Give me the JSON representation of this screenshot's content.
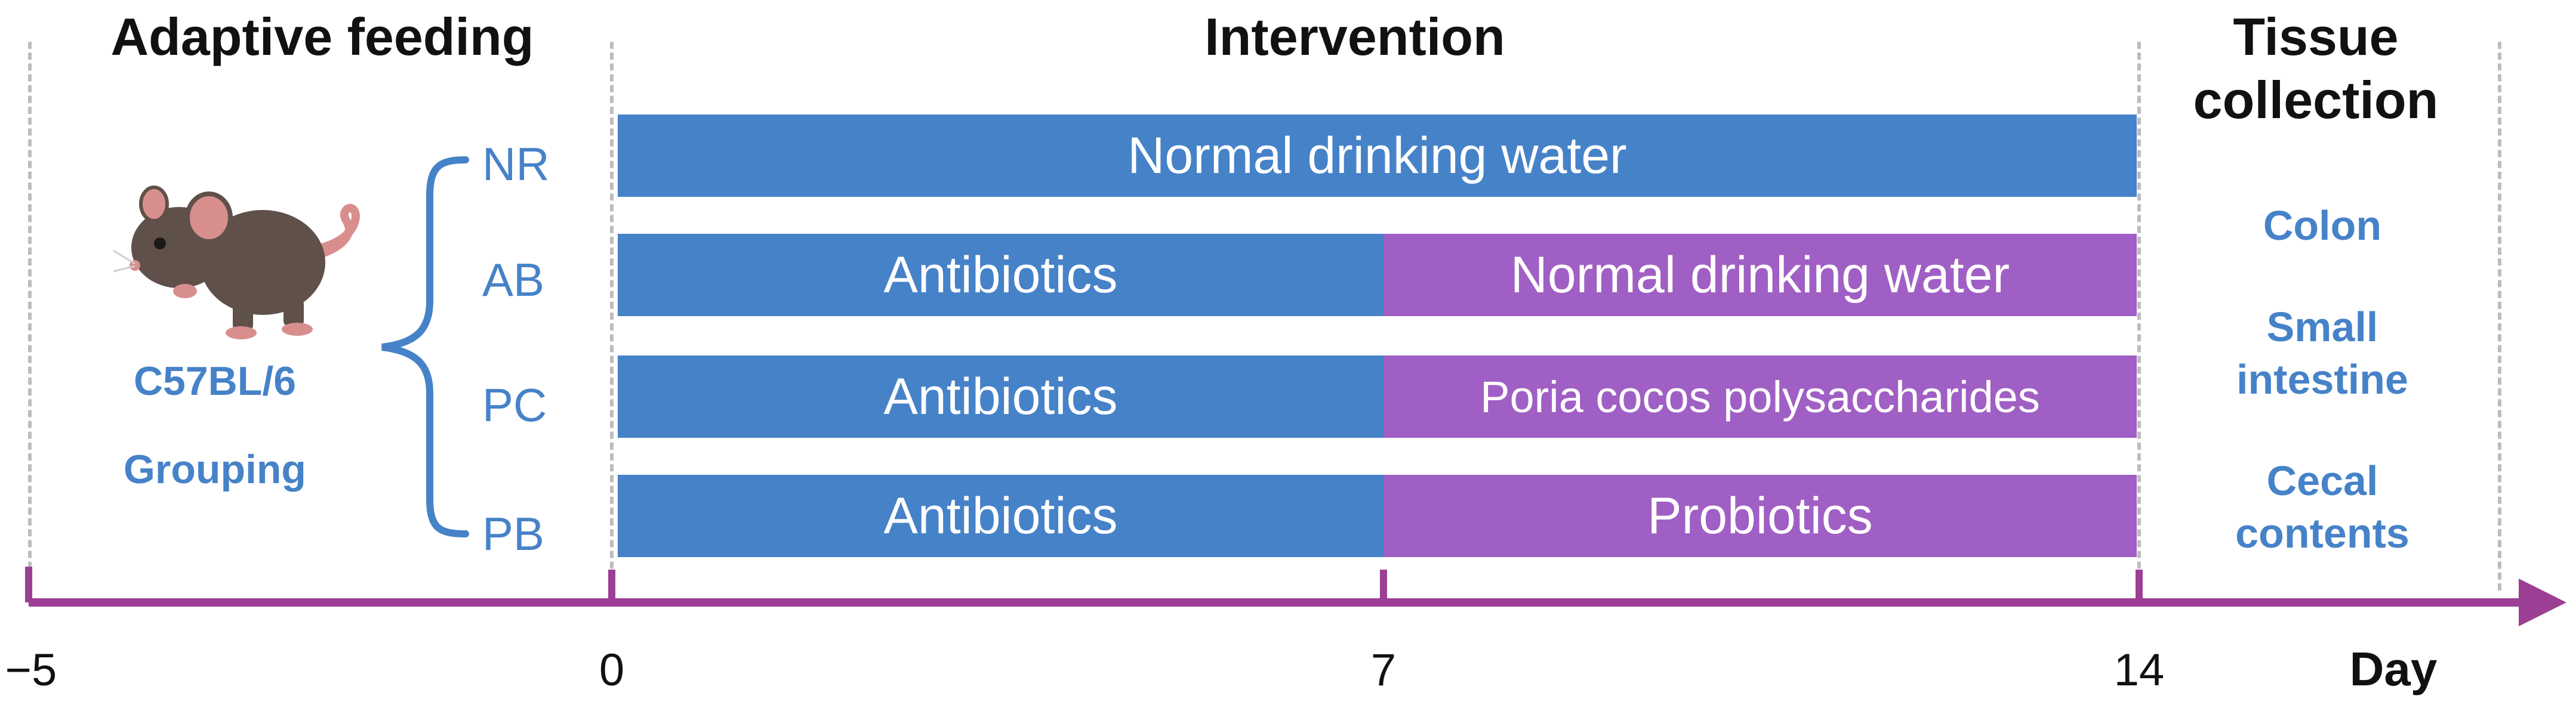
{
  "headers": {
    "adaptive": "Adaptive feeding",
    "intervention": "Intervention",
    "tissue_line1": "Tissue",
    "tissue_line2": "collection"
  },
  "left": {
    "strain": "C57BL/6",
    "grouping": "Grouping"
  },
  "groups": [
    "NR",
    "AB",
    "PC",
    "PB"
  ],
  "bars": {
    "nr_full": "Normal drinking water",
    "ab_first": "Antibiotics",
    "ab_second": "Normal drinking water",
    "pc_first": "Antibiotics",
    "pc_second": "Poria cocos polysaccharides",
    "pb_first": "Antibiotics",
    "pb_second": "Probiotics"
  },
  "tissues": {
    "colon": "Colon",
    "small_intestine": "Small intestine",
    "cecal_contents": "Cecal contents"
  },
  "axis": {
    "ticks": [
      "−5",
      "0",
      "7",
      "14"
    ],
    "label": "Day"
  },
  "colors": {
    "blue": "#4682c8",
    "purple": "#a05fc4",
    "axis": "#9c3f94",
    "text": "#111111"
  },
  "icons": {
    "mouse": "mouse-icon"
  }
}
